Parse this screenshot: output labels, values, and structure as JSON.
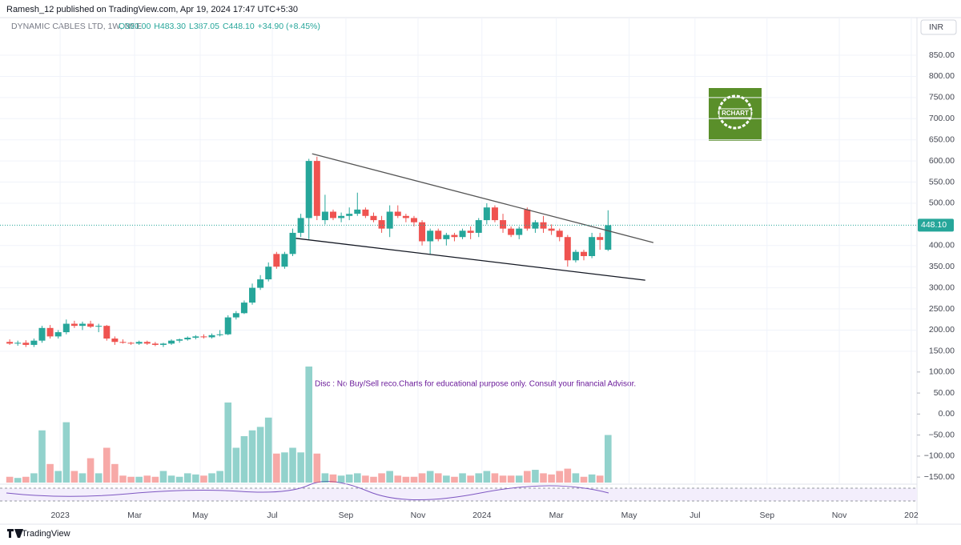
{
  "header": {
    "publisher": "Ramesh_12 published on TradingView.com, Apr 19, 2024 17:47 UTC+5:30",
    "symbol": "DYNAMIC CABLES LTD, 1W, NSE",
    "legend_values": [
      "O390.00",
      "H483.30",
      "L387.05",
      "C448.10",
      "+34.90 (+8.45%)"
    ],
    "currency": "INR"
  },
  "disclaimer": "Disc  : No Buy/Sell reco.Charts for educational purpose only.  Consult your financial Advisor.",
  "watermark": "RCHART",
  "footer": "TradingView",
  "chart_data": {
    "type": "candlestick",
    "open": [
      172,
      168,
      170,
      165,
      175,
      205,
      185,
      195,
      215,
      210,
      215,
      208,
      210,
      180,
      172,
      170,
      168,
      172,
      168,
      165,
      168,
      175,
      178,
      182,
      185,
      183,
      188,
      190,
      230,
      240,
      265,
      300,
      320,
      380,
      350,
      380,
      430,
      465,
      600,
      460,
      480,
      465,
      470,
      475,
      485,
      470,
      460,
      440,
      480,
      470,
      465,
      455,
      410,
      435,
      415,
      425,
      420,
      435,
      430,
      460,
      490,
      460,
      440,
      425,
      485,
      440,
      455,
      440,
      435,
      420,
      365,
      385,
      375,
      420,
      390
    ],
    "high": [
      178,
      175,
      176,
      180,
      210,
      212,
      200,
      225,
      222,
      220,
      222,
      215,
      212,
      185,
      178,
      172,
      175,
      175,
      172,
      170,
      178,
      180,
      185,
      188,
      190,
      192,
      200,
      235,
      245,
      270,
      310,
      330,
      360,
      385,
      385,
      440,
      475,
      605,
      610,
      520,
      485,
      478,
      490,
      525,
      490,
      478,
      470,
      495,
      495,
      475,
      470,
      460,
      440,
      440,
      430,
      430,
      440,
      445,
      465,
      500,
      495,
      475,
      445,
      445,
      490,
      460,
      470,
      450,
      440,
      425,
      390,
      390,
      430,
      430,
      483.3
    ],
    "low": [
      165,
      163,
      160,
      160,
      170,
      180,
      180,
      190,
      205,
      200,
      205,
      195,
      175,
      165,
      168,
      165,
      165,
      165,
      162,
      160,
      165,
      170,
      175,
      178,
      180,
      180,
      185,
      188,
      225,
      238,
      260,
      295,
      315,
      345,
      345,
      375,
      420,
      415,
      460,
      450,
      460,
      455,
      460,
      470,
      465,
      455,
      430,
      420,
      465,
      455,
      445,
      400,
      380,
      410,
      400,
      410,
      415,
      415,
      420,
      450,
      455,
      430,
      420,
      415,
      435,
      430,
      430,
      425,
      410,
      350,
      360,
      365,
      370,
      390,
      387.05
    ],
    "close": [
      168,
      170,
      165,
      175,
      205,
      185,
      195,
      215,
      210,
      215,
      208,
      210,
      180,
      172,
      170,
      168,
      172,
      168,
      165,
      168,
      175,
      178,
      182,
      185,
      183,
      188,
      190,
      230,
      240,
      265,
      300,
      320,
      350,
      350,
      380,
      430,
      465,
      600,
      470,
      480,
      465,
      470,
      475,
      485,
      470,
      460,
      440,
      480,
      470,
      465,
      455,
      410,
      435,
      415,
      425,
      420,
      435,
      430,
      460,
      490,
      460,
      440,
      425,
      440,
      440,
      455,
      440,
      435,
      420,
      365,
      385,
      375,
      420,
      413.2,
      448.1
    ],
    "volume": [
      5,
      4,
      5,
      8,
      45,
      16,
      10,
      52,
      10,
      8,
      21,
      8,
      30,
      16,
      6,
      5,
      5,
      6,
      5,
      10,
      6,
      5,
      8,
      7,
      6,
      8,
      10,
      69,
      30,
      40,
      45,
      48,
      56,
      25,
      26,
      30,
      26,
      100,
      25,
      8,
      7,
      6,
      7,
      8,
      6,
      5,
      8,
      10,
      6,
      5,
      5,
      8,
      10,
      8,
      6,
      5,
      8,
      6,
      8,
      10,
      8,
      6,
      6,
      6,
      10,
      11,
      8,
      7,
      10,
      12,
      8,
      5,
      7,
      6,
      41
    ],
    "colors": {
      "up": "#26a69a",
      "down": "#ef5350"
    },
    "xlim": [
      -1.2,
      112.2
    ],
    "xticks": [
      {
        "value": 6.24,
        "label": "2023"
      },
      {
        "value": 15.45,
        "label": "Mar"
      },
      {
        "value": 23.56,
        "label": "May"
      },
      {
        "value": 32.48,
        "label": "Jul"
      },
      {
        "value": 41.58,
        "label": "Sep"
      },
      {
        "value": 50.5,
        "label": "Nov"
      },
      {
        "value": 58.4,
        "label": "2024"
      },
      {
        "value": 67.6,
        "label": "Mar"
      },
      {
        "value": 76.6,
        "label": "May"
      },
      {
        "value": 84.75,
        "label": "Jul"
      },
      {
        "value": 93.66,
        "label": "Sep"
      },
      {
        "value": 102.6,
        "label": "Nov"
      },
      {
        "value": 111.5,
        "label": "202"
      }
    ],
    "ylim": [
      110,
      939
    ],
    "yticks": [
      {
        "value": 850,
        "label": "850.00"
      },
      {
        "value": 800,
        "label": "800.00"
      },
      {
        "value": 750,
        "label": "750.00"
      },
      {
        "value": 700,
        "label": "700.00"
      },
      {
        "value": 650,
        "label": "650.00"
      },
      {
        "value": 600,
        "label": "600.00"
      },
      {
        "value": 550,
        "label": "550.00"
      },
      {
        "value": 500,
        "label": "500.00"
      },
      {
        "value": 400,
        "label": "400.00"
      },
      {
        "value": 350,
        "label": "350.00"
      },
      {
        "value": 300,
        "label": "300.00"
      },
      {
        "value": 250,
        "label": "250.00"
      },
      {
        "value": 200,
        "label": "200.00"
      },
      {
        "value": 150,
        "label": "150.00"
      }
    ],
    "last_price": {
      "value": 448.1,
      "label": "448.10"
    },
    "y2lim": [
      -163,
      113
    ],
    "y2ticks": [
      {
        "value": 100,
        "label": "100.00"
      },
      {
        "value": 50,
        "label": "50.00"
      },
      {
        "value": 0,
        "label": "0.00"
      },
      {
        "value": -50,
        "label": "−50.00"
      },
      {
        "value": -100,
        "label": "−100.00"
      },
      {
        "value": -150,
        "label": "−150.00"
      }
    ],
    "vlim": [
      0,
      100
    ],
    "trendlines": [
      {
        "x": [
          37.4,
          79.6
        ],
        "y": [
          617,
          407
        ]
      },
      {
        "x": [
          35.4,
          78.6
        ],
        "y": [
          417,
          318
        ]
      }
    ]
  }
}
